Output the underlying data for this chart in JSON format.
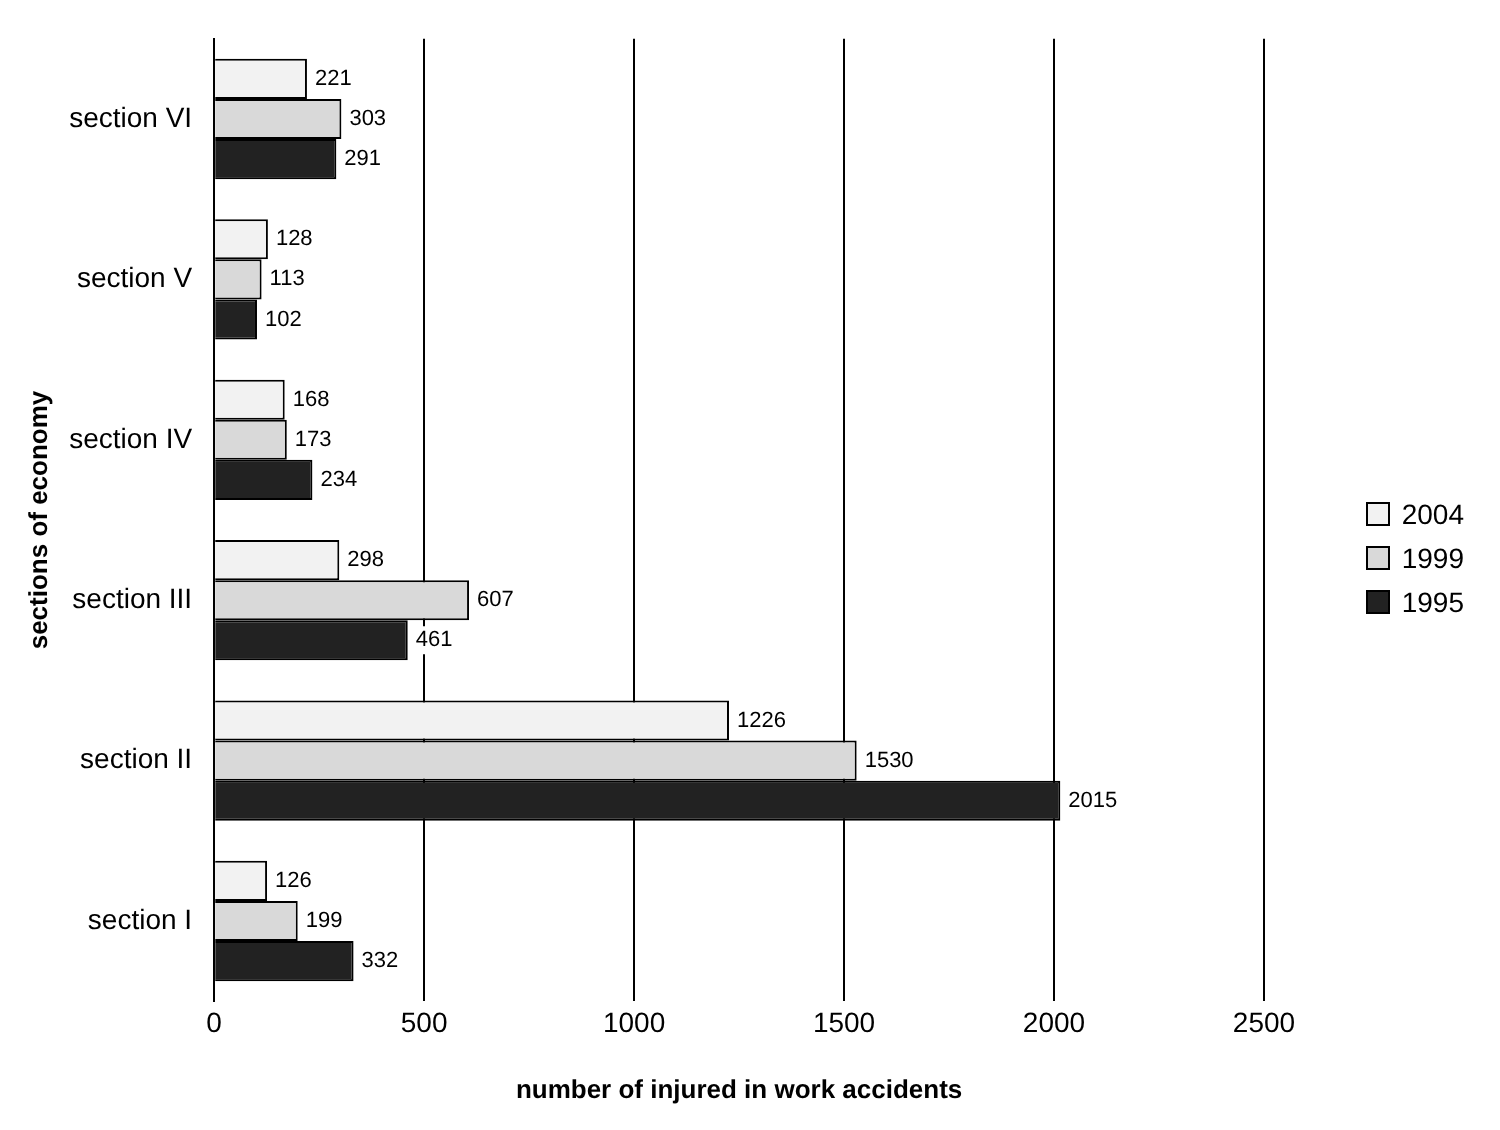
{
  "chart_data": {
    "type": "bar",
    "orientation": "horizontal",
    "xlabel": "number of injured in work accidents",
    "ylabel": "sections of economy",
    "categories": [
      "section VI",
      "section V",
      "section IV",
      "section III",
      "section II",
      "section I"
    ],
    "series": [
      {
        "name": "2004",
        "color": "#f2f2f2",
        "values": [
          221,
          128,
          168,
          298,
          1226,
          126
        ]
      },
      {
        "name": "1999",
        "color": "#d9d9d9",
        "values": [
          303,
          113,
          173,
          607,
          1530,
          199
        ]
      },
      {
        "name": "1995",
        "color": "#222222",
        "values": [
          291,
          102,
          234,
          461,
          2015,
          332
        ]
      }
    ],
    "xlim": [
      0,
      2500
    ],
    "xticks": [
      0,
      500,
      1000,
      1500,
      2000,
      2500
    ],
    "grid": "x",
    "legend": "right",
    "data_labels": true
  }
}
